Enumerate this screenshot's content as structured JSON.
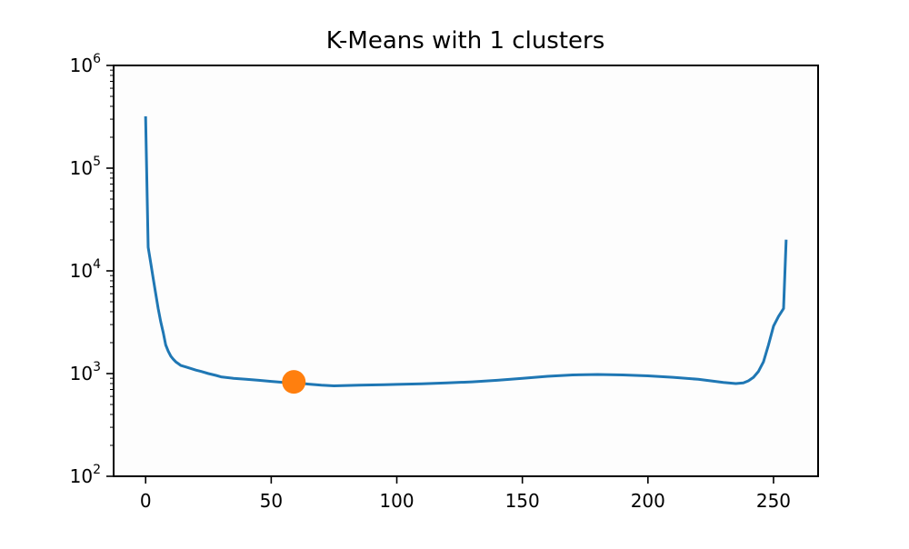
{
  "chart_data": {
    "type": "line",
    "title": "K-Means with 1 clusters",
    "xlabel": "",
    "ylabel": "",
    "xlim": [
      -12.75,
      267.75
    ],
    "ylim": [
      100,
      1000000
    ],
    "y_scale": "log",
    "grid": false,
    "legend": "none",
    "x_ticks": [
      0,
      50,
      100,
      150,
      200,
      250
    ],
    "x_tick_labels": [
      "0",
      "50",
      "100",
      "150",
      "200",
      "250"
    ],
    "y_ticks": [
      100,
      1000,
      10000,
      100000,
      1000000
    ],
    "y_tick_labels": [
      {
        "base": "10",
        "exp": "2"
      },
      {
        "base": "10",
        "exp": "3"
      },
      {
        "base": "10",
        "exp": "4"
      },
      {
        "base": "10",
        "exp": "5"
      },
      {
        "base": "10",
        "exp": "6"
      }
    ],
    "series": [
      {
        "color": "#1f77b4",
        "points": [
          [
            0,
            310000
          ],
          [
            1,
            17000
          ],
          [
            2,
            12000
          ],
          [
            3,
            8500
          ],
          [
            4,
            6000
          ],
          [
            5,
            4300
          ],
          [
            6,
            3200
          ],
          [
            7,
            2500
          ],
          [
            8,
            1900
          ],
          [
            9,
            1650
          ],
          [
            10,
            1480
          ],
          [
            11,
            1380
          ],
          [
            12,
            1300
          ],
          [
            13,
            1250
          ],
          [
            14,
            1200
          ],
          [
            16,
            1160
          ],
          [
            18,
            1120
          ],
          [
            20,
            1080
          ],
          [
            22,
            1050
          ],
          [
            25,
            1000
          ],
          [
            28,
            960
          ],
          [
            30,
            930
          ],
          [
            35,
            900
          ],
          [
            40,
            880
          ],
          [
            45,
            860
          ],
          [
            50,
            840
          ],
          [
            55,
            820
          ],
          [
            60,
            810
          ],
          [
            65,
            790
          ],
          [
            70,
            770
          ],
          [
            75,
            760
          ],
          [
            80,
            765
          ],
          [
            85,
            770
          ],
          [
            90,
            775
          ],
          [
            95,
            780
          ],
          [
            100,
            785
          ],
          [
            110,
            795
          ],
          [
            120,
            810
          ],
          [
            130,
            830
          ],
          [
            140,
            860
          ],
          [
            150,
            900
          ],
          [
            160,
            940
          ],
          [
            170,
            970
          ],
          [
            180,
            980
          ],
          [
            190,
            970
          ],
          [
            200,
            950
          ],
          [
            210,
            920
          ],
          [
            220,
            880
          ],
          [
            225,
            850
          ],
          [
            230,
            820
          ],
          [
            235,
            800
          ],
          [
            238,
            810
          ],
          [
            240,
            850
          ],
          [
            242,
            920
          ],
          [
            244,
            1050
          ],
          [
            246,
            1300
          ],
          [
            248,
            1900
          ],
          [
            250,
            2900
          ],
          [
            252,
            3600
          ],
          [
            254,
            4300
          ],
          [
            255,
            19500
          ]
        ]
      },
      {
        "color": "#ff7f0e",
        "marker": "circle",
        "points": [
          [
            59,
            830
          ]
        ]
      }
    ]
  }
}
